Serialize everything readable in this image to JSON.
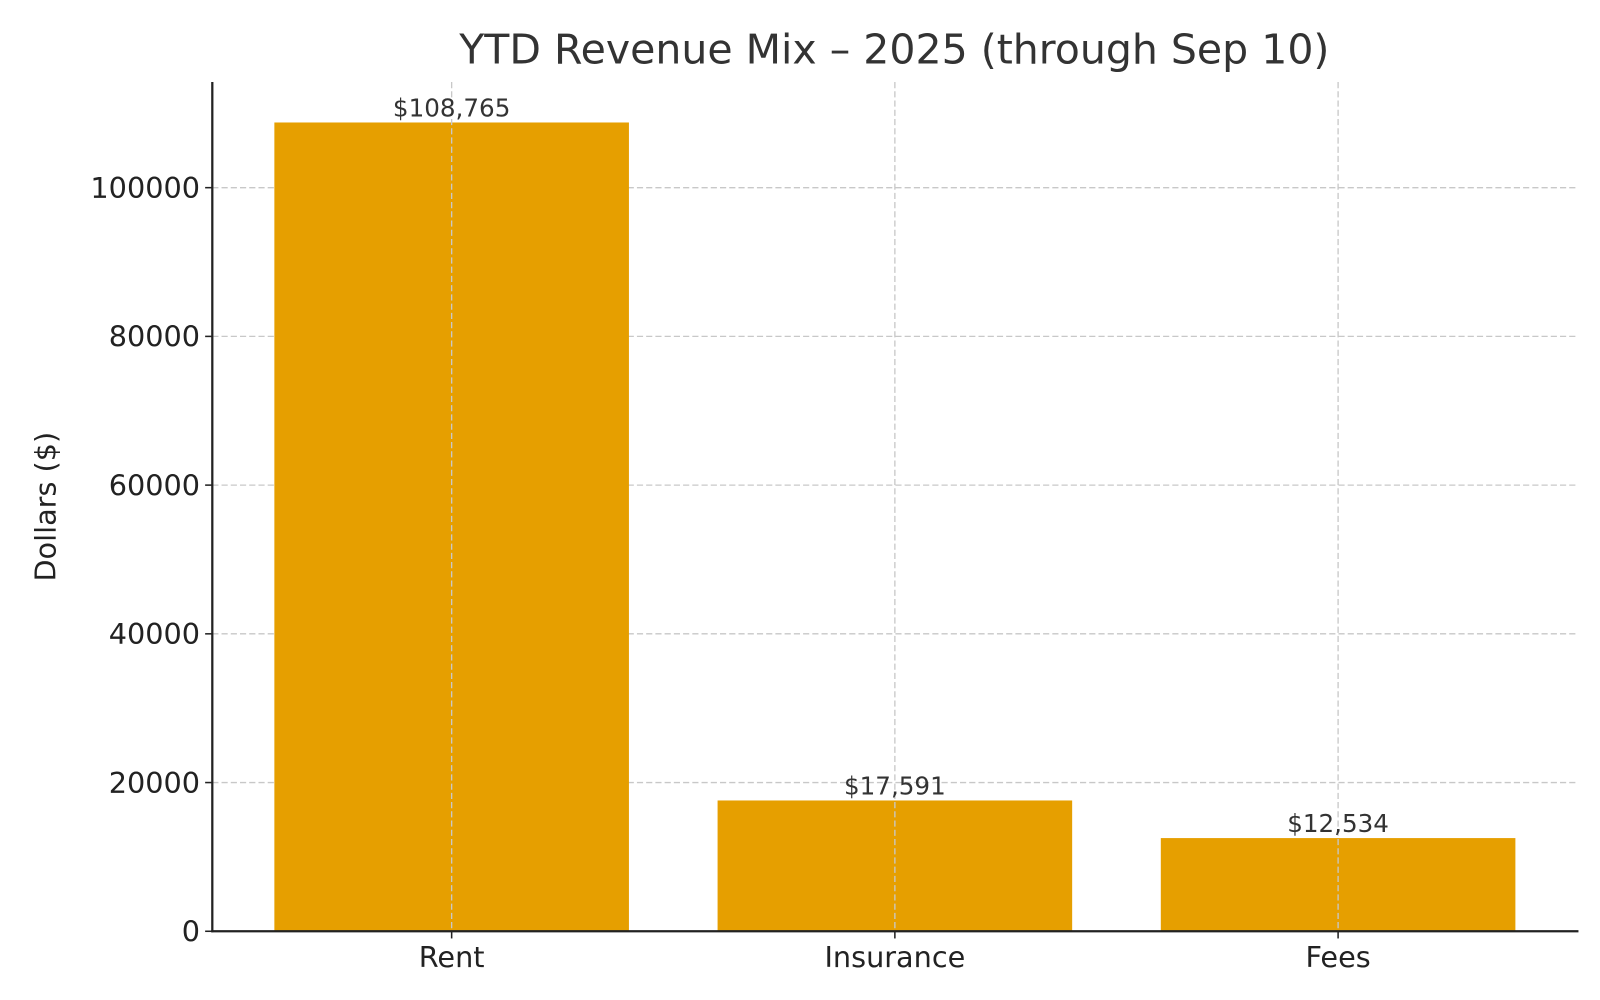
{
  "chart_data": {
    "type": "bar",
    "title": "YTD Revenue Mix – 2025 (through Sep 10)",
    "xlabel": "",
    "ylabel": "Dollars ($)",
    "categories": [
      "Rent",
      "Insurance",
      "Fees"
    ],
    "values": [
      108765,
      17591,
      12534
    ],
    "data_labels": [
      "$108,765",
      "$17,591",
      "$12,534"
    ],
    "ylim": [
      0,
      114203
    ],
    "yticks": [
      0,
      20000,
      40000,
      60000,
      80000,
      100000
    ],
    "ytick_labels": [
      "0",
      "20000",
      "40000",
      "60000",
      "80000",
      "100000"
    ],
    "grid": true,
    "bar_color": "#E69F00"
  }
}
